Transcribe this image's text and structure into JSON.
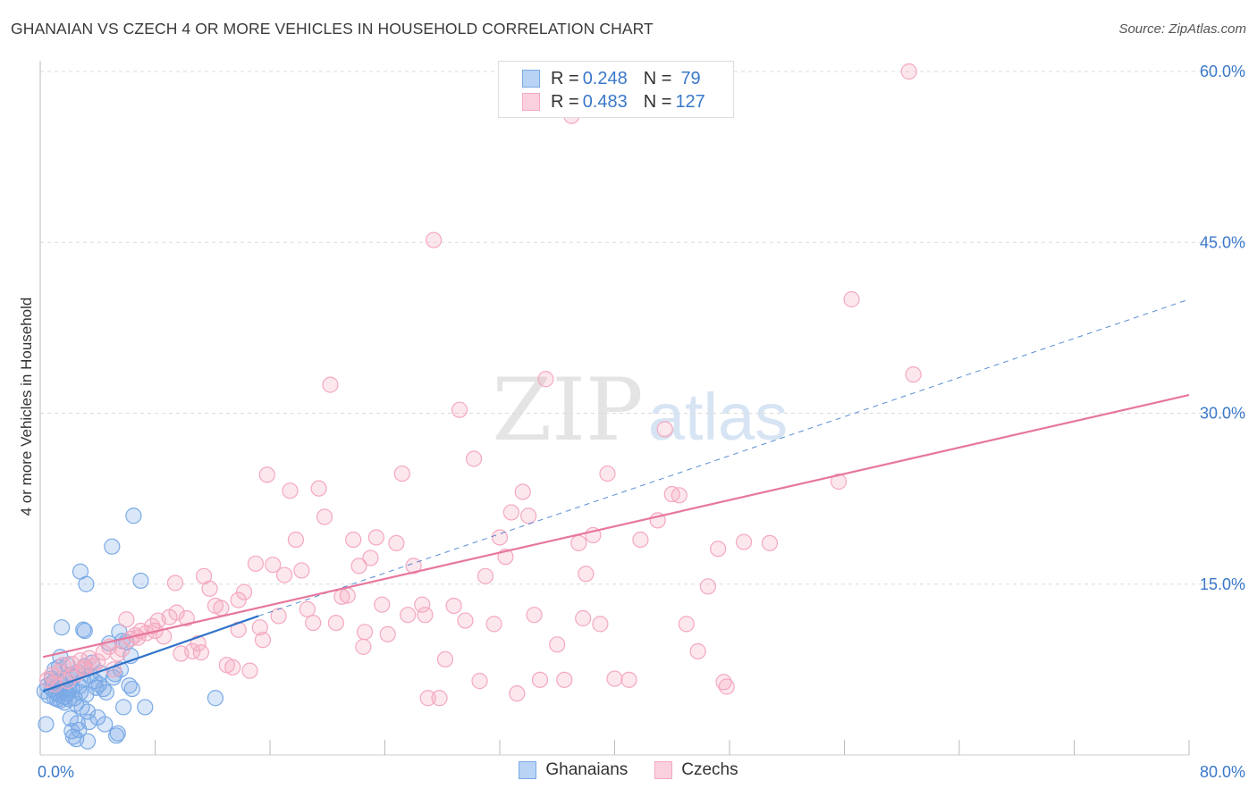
{
  "title": "GHANAIAN VS CZECH 4 OR MORE VEHICLES IN HOUSEHOLD CORRELATION CHART",
  "source": "Source: ZipAtlas.com",
  "watermark": {
    "zip": "ZIP",
    "atlas": "atlas"
  },
  "legend_top": {
    "rows": [
      {
        "r_label": "R = ",
        "r_value": "0.248",
        "n_label": "N = ",
        "n_value": "79",
        "color": "#8bb4e8"
      },
      {
        "r_label": "R = ",
        "r_value": "0.483",
        "n_label": "N = ",
        "n_value": "127",
        "color": "#f4a8c0"
      }
    ]
  },
  "legend_bottom": [
    {
      "label": "Ghanaians",
      "color": "#8bb4e8"
    },
    {
      "label": "Czechs",
      "color": "#f4a8c0"
    }
  ],
  "chart_data": {
    "type": "scatter",
    "title": "GHANAIAN VS CZECH 4 OR MORE VEHICLES IN HOUSEHOLD CORRELATION CHART",
    "xlabel": "",
    "ylabel": "4 or more Vehicles in Household",
    "xlim": [
      0,
      80
    ],
    "ylim": [
      0,
      62
    ],
    "x_tick_labels": [
      {
        "value": 0,
        "label": "0.0%"
      },
      {
        "value": 80,
        "label": "80.0%"
      }
    ],
    "y_tick_labels": [
      {
        "value": 15,
        "label": "15.0%"
      },
      {
        "value": 30,
        "label": "30.0%"
      },
      {
        "value": 45,
        "label": "45.0%"
      },
      {
        "value": 60,
        "label": "60.0%"
      }
    ],
    "x_minor_ticks": [
      8,
      16,
      24,
      32,
      40,
      48,
      56,
      64,
      72,
      80
    ],
    "series": [
      {
        "name": "Ghanaians",
        "color": "#7aaae6",
        "trend": {
          "x0": 0.2,
          "y0": 5.6,
          "x1": 15.2,
          "y1": 12.2,
          "color": "#2f72c9"
        },
        "trend_extended": {
          "x0": 15.2,
          "y0": 12.2,
          "x1": 80,
          "y1": 40,
          "color": "#2f72c9",
          "dashed": true
        },
        "points": [
          [
            0.3,
            5.6
          ],
          [
            0.5,
            6.1
          ],
          [
            0.6,
            5.2
          ],
          [
            0.8,
            5.8
          ],
          [
            0.9,
            6.4
          ],
          [
            1.0,
            5.0
          ],
          [
            1.1,
            5.5
          ],
          [
            1.2,
            6.0
          ],
          [
            1.3,
            5.3
          ],
          [
            1.4,
            4.8
          ],
          [
            1.5,
            6.2
          ],
          [
            1.6,
            5.7
          ],
          [
            1.7,
            5.1
          ],
          [
            1.8,
            6.5
          ],
          [
            1.9,
            5.4
          ],
          [
            2.0,
            4.9
          ],
          [
            2.1,
            7.0
          ],
          [
            2.2,
            5.9
          ],
          [
            2.3,
            6.8
          ],
          [
            2.4,
            5.0
          ],
          [
            2.5,
            4.5
          ],
          [
            2.6,
            7.3
          ],
          [
            2.7,
            6.0
          ],
          [
            2.8,
            5.5
          ],
          [
            2.9,
            4.2
          ],
          [
            3.0,
            6.6
          ],
          [
            3.1,
            7.8
          ],
          [
            3.2,
            5.3
          ],
          [
            3.3,
            3.8
          ],
          [
            3.4,
            2.9
          ],
          [
            0.4,
            2.7
          ],
          [
            1.3,
            7.7
          ],
          [
            1.4,
            8.6
          ],
          [
            1.5,
            11.2
          ],
          [
            2.1,
            3.2
          ],
          [
            2.2,
            2.1
          ],
          [
            2.3,
            1.6
          ],
          [
            2.5,
            1.4
          ],
          [
            2.6,
            2.8
          ],
          [
            2.7,
            2.2
          ],
          [
            2.8,
            16.1
          ],
          [
            3.0,
            11.0
          ],
          [
            3.1,
            10.9
          ],
          [
            3.2,
            15.0
          ],
          [
            3.3,
            1.2
          ],
          [
            3.6,
            8.1
          ],
          [
            3.8,
            6.5
          ],
          [
            3.9,
            5.9
          ],
          [
            4.0,
            3.3
          ],
          [
            4.2,
            7.2
          ],
          [
            4.4,
            5.8
          ],
          [
            4.5,
            2.7
          ],
          [
            4.6,
            5.5
          ],
          [
            4.8,
            9.8
          ],
          [
            5.0,
            18.3
          ],
          [
            5.1,
            6.8
          ],
          [
            5.2,
            7.1
          ],
          [
            5.3,
            1.7
          ],
          [
            5.4,
            1.9
          ],
          [
            5.5,
            10.8
          ],
          [
            5.6,
            7.5
          ],
          [
            5.7,
            10.0
          ],
          [
            5.8,
            4.2
          ],
          [
            6.0,
            9.9
          ],
          [
            6.2,
            6.1
          ],
          [
            6.3,
            8.7
          ],
          [
            6.4,
            5.8
          ],
          [
            6.5,
            21.0
          ],
          [
            7.0,
            15.3
          ],
          [
            7.3,
            4.2
          ],
          [
            12.2,
            5.0
          ],
          [
            0.8,
            6.7
          ],
          [
            1.0,
            7.5
          ],
          [
            1.7,
            4.6
          ],
          [
            2.0,
            5.8
          ],
          [
            3.5,
            7.0
          ],
          [
            4.1,
            6.2
          ],
          [
            1.2,
            4.9
          ],
          [
            1.9,
            7.9
          ]
        ]
      },
      {
        "name": "Czechs",
        "color": "#f4a8c0",
        "trend": {
          "x0": 0.2,
          "y0": 8.6,
          "x1": 80,
          "y1": 31.6,
          "color": "#e7779c"
        },
        "points": [
          [
            0.5,
            6.6
          ],
          [
            0.8,
            7.0
          ],
          [
            1.0,
            6.2
          ],
          [
            1.3,
            7.3
          ],
          [
            1.6,
            7.9
          ],
          [
            1.9,
            6.5
          ],
          [
            2.2,
            8.0
          ],
          [
            2.5,
            7.1
          ],
          [
            2.8,
            8.3
          ],
          [
            3.1,
            7.6
          ],
          [
            3.4,
            8.5
          ],
          [
            3.7,
            7.8
          ],
          [
            4.0,
            8.2
          ],
          [
            4.4,
            9.0
          ],
          [
            4.8,
            9.5
          ],
          [
            5.1,
            7.5
          ],
          [
            5.4,
            8.9
          ],
          [
            5.7,
            9.3
          ],
          [
            6.0,
            11.9
          ],
          [
            6.3,
            10.2
          ],
          [
            6.6,
            10.5
          ],
          [
            7.0,
            10.9
          ],
          [
            7.4,
            10.7
          ],
          [
            7.8,
            11.3
          ],
          [
            8.2,
            11.8
          ],
          [
            8.6,
            10.4
          ],
          [
            9.0,
            12.1
          ],
          [
            9.4,
            15.1
          ],
          [
            9.8,
            8.9
          ],
          [
            10.2,
            12.0
          ],
          [
            10.6,
            9.1
          ],
          [
            11.0,
            9.8
          ],
          [
            11.4,
            15.7
          ],
          [
            11.8,
            14.6
          ],
          [
            12.2,
            13.1
          ],
          [
            12.6,
            12.9
          ],
          [
            13.0,
            7.9
          ],
          [
            13.4,
            7.7
          ],
          [
            13.8,
            13.6
          ],
          [
            14.2,
            14.3
          ],
          [
            14.6,
            7.4
          ],
          [
            15.0,
            16.8
          ],
          [
            15.3,
            11.2
          ],
          [
            15.8,
            24.6
          ],
          [
            16.2,
            16.7
          ],
          [
            16.6,
            12.2
          ],
          [
            17.0,
            15.8
          ],
          [
            17.4,
            23.2
          ],
          [
            17.8,
            18.9
          ],
          [
            18.2,
            16.2
          ],
          [
            18.6,
            12.8
          ],
          [
            19.0,
            11.6
          ],
          [
            19.4,
            23.4
          ],
          [
            19.8,
            20.9
          ],
          [
            20.2,
            32.5
          ],
          [
            20.6,
            11.6
          ],
          [
            21.0,
            13.9
          ],
          [
            21.4,
            14.0
          ],
          [
            21.8,
            18.9
          ],
          [
            22.2,
            16.6
          ],
          [
            22.6,
            10.8
          ],
          [
            23.0,
            17.3
          ],
          [
            23.4,
            19.1
          ],
          [
            23.8,
            13.2
          ],
          [
            24.2,
            10.6
          ],
          [
            24.8,
            18.6
          ],
          [
            25.2,
            24.7
          ],
          [
            25.6,
            12.3
          ],
          [
            26.0,
            16.6
          ],
          [
            26.6,
            13.2
          ],
          [
            27.0,
            5.0
          ],
          [
            27.4,
            45.2
          ],
          [
            27.8,
            5.0
          ],
          [
            28.2,
            8.4
          ],
          [
            28.8,
            13.1
          ],
          [
            29.2,
            30.3
          ],
          [
            29.6,
            11.8
          ],
          [
            30.2,
            26.0
          ],
          [
            30.6,
            6.5
          ],
          [
            31.0,
            15.7
          ],
          [
            31.6,
            11.5
          ],
          [
            32.0,
            19.1
          ],
          [
            32.4,
            17.4
          ],
          [
            32.8,
            21.3
          ],
          [
            33.2,
            5.4
          ],
          [
            33.6,
            23.1
          ],
          [
            34.0,
            21.0
          ],
          [
            34.4,
            12.3
          ],
          [
            34.8,
            6.6
          ],
          [
            35.2,
            33.0
          ],
          [
            36.0,
            9.7
          ],
          [
            36.5,
            6.6
          ],
          [
            37.0,
            56.1
          ],
          [
            37.5,
            18.6
          ],
          [
            38.0,
            15.9
          ],
          [
            38.5,
            19.3
          ],
          [
            39.0,
            11.5
          ],
          [
            39.5,
            24.7
          ],
          [
            40.0,
            6.7
          ],
          [
            41.0,
            6.6
          ],
          [
            41.8,
            18.9
          ],
          [
            43.0,
            20.6
          ],
          [
            43.5,
            28.6
          ],
          [
            44.0,
            22.9
          ],
          [
            44.5,
            22.8
          ],
          [
            45.0,
            11.5
          ],
          [
            45.8,
            9.1
          ],
          [
            46.5,
            14.8
          ],
          [
            47.2,
            18.1
          ],
          [
            47.6,
            6.4
          ],
          [
            47.8,
            6.0
          ],
          [
            49.0,
            18.7
          ],
          [
            50.8,
            18.6
          ],
          [
            55.6,
            24.0
          ],
          [
            56.5,
            40.0
          ],
          [
            60.5,
            60.0
          ],
          [
            60.8,
            33.4
          ],
          [
            3.0,
            7.6
          ],
          [
            6.8,
            10.3
          ],
          [
            8.0,
            10.9
          ],
          [
            11.2,
            9.0
          ],
          [
            13.8,
            11.0
          ],
          [
            15.5,
            10.1
          ],
          [
            22.5,
            9.5
          ],
          [
            26.8,
            12.3
          ],
          [
            37.8,
            12.0
          ],
          [
            9.5,
            12.5
          ]
        ]
      }
    ]
  }
}
